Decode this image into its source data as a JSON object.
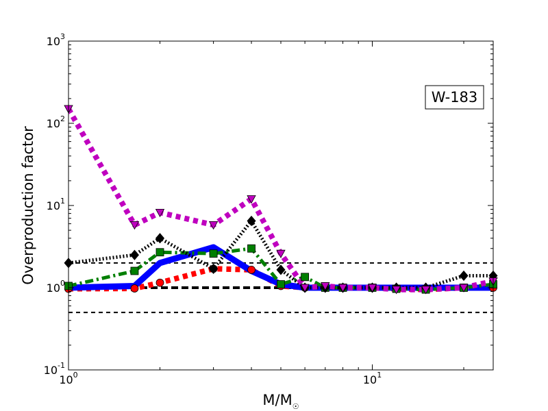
{
  "chart_data": {
    "type": "line",
    "title": "",
    "annotation": "W-183",
    "xlabel_main": "M/M",
    "xlabel_sub": "☉",
    "ylabel": "Overproduction factor",
    "x_scale": "log",
    "y_scale": "log",
    "xlim": [
      1,
      25
    ],
    "ylim": [
      0.1,
      1000
    ],
    "x_ticks": [
      {
        "value": 1,
        "base": "10",
        "exp": "0"
      },
      {
        "value": 10,
        "base": "10",
        "exp": "1"
      }
    ],
    "y_ticks": [
      {
        "value": 0.1,
        "base": "10",
        "exp": "-1"
      },
      {
        "value": 1,
        "base": "10",
        "exp": "0"
      },
      {
        "value": 10,
        "base": "10",
        "exp": "1"
      },
      {
        "value": 100,
        "base": "10",
        "exp": "2"
      },
      {
        "value": 1000,
        "base": "10",
        "exp": "3"
      }
    ],
    "reference_lines": [
      {
        "y": 2,
        "style": "dashed",
        "color": "#000000",
        "weight": "thin"
      },
      {
        "y": 1,
        "style": "dashed",
        "color": "#000000",
        "weight": "thick"
      },
      {
        "y": 0.5,
        "style": "dashed",
        "color": "#000000",
        "weight": "thin"
      }
    ],
    "series": [
      {
        "color": "#ff0000",
        "line": "dotted",
        "marker": "circle",
        "x": [
          1,
          1.65,
          2,
          3,
          4,
          5,
          6,
          7,
          8,
          10,
          12,
          15,
          20,
          25
        ],
        "y": [
          0.97,
          0.98,
          1.15,
          1.7,
          1.65,
          1.05,
          1.0,
          1.0,
          1.0,
          1.0,
          0.97,
          0.95,
          1.0,
          1.0
        ]
      },
      {
        "color": "#0000ff",
        "line": "solid",
        "marker": "none",
        "x": [
          1,
          1.65,
          2,
          3,
          4,
          5,
          6,
          7,
          8,
          10,
          12,
          15,
          20,
          25
        ],
        "y": [
          1.0,
          1.05,
          2.0,
          3.1,
          1.6,
          1.1,
          1.0,
          1.0,
          1.0,
          1.0,
          1.0,
          1.0,
          1.0,
          1.0
        ]
      },
      {
        "color": "#007f00",
        "line": "dashdot",
        "marker": "square",
        "x": [
          1,
          1.65,
          2,
          3,
          4,
          5,
          6,
          7,
          8,
          10,
          12,
          15,
          20,
          25
        ],
        "y": [
          1.05,
          1.6,
          2.7,
          2.6,
          3.0,
          1.1,
          1.35,
          1.0,
          1.0,
          1.0,
          0.97,
          0.95,
          1.0,
          1.1
        ]
      },
      {
        "color": "#000000",
        "line": "dotted",
        "marker": "diamond",
        "x": [
          1,
          1.65,
          2,
          3,
          4,
          5,
          6,
          7,
          8,
          10,
          12,
          15,
          20,
          25
        ],
        "y": [
          2.0,
          2.5,
          4.0,
          1.7,
          6.5,
          1.65,
          1.0,
          1.0,
          1.0,
          1.0,
          1.0,
          1.0,
          1.4,
          1.4
        ]
      },
      {
        "color": "#bf00bf",
        "line": "dotted",
        "marker": "triangle_down",
        "x": [
          1,
          1.65,
          2,
          3,
          4,
          5,
          6,
          7,
          8,
          10,
          12,
          15,
          20,
          25
        ],
        "y": [
          150,
          5.8,
          8.2,
          5.8,
          12,
          2.6,
          1.0,
          1.05,
          1.0,
          1.0,
          0.95,
          0.95,
          1.0,
          1.2
        ]
      }
    ]
  }
}
